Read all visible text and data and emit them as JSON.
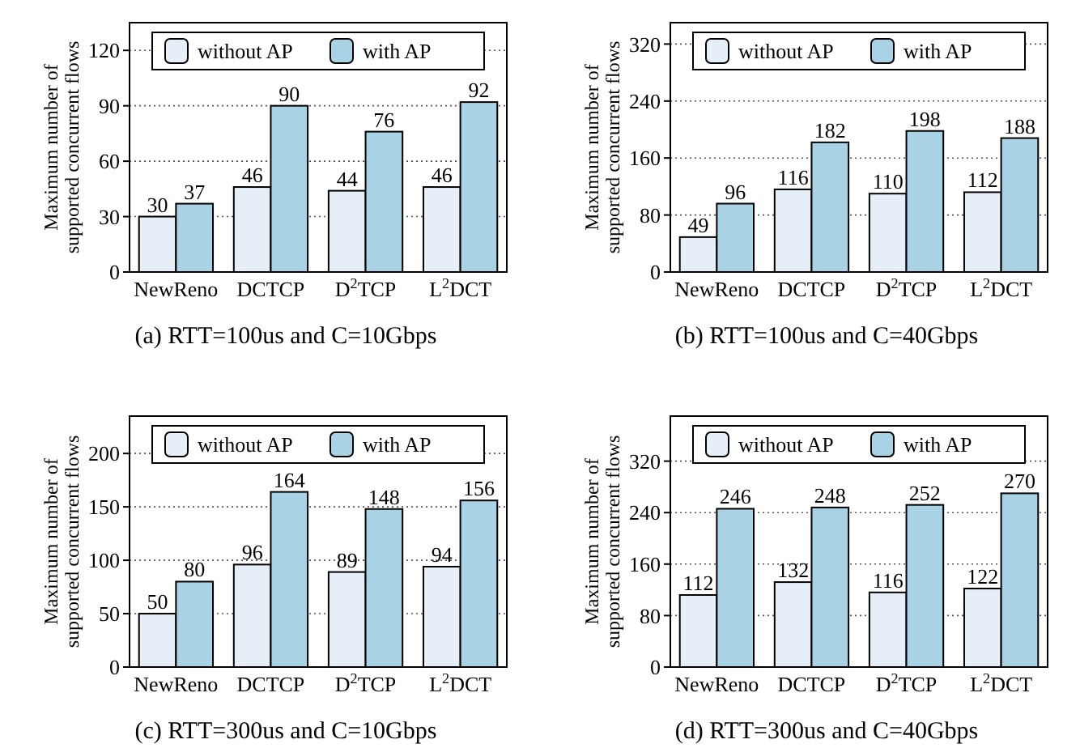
{
  "chart_data": [
    {
      "type": "bar",
      "title": "(a) RTT=100us and C=10Gbps",
      "ylabel": "Maximum number of\nsupported concurrent flows",
      "categories": [
        "NewReno",
        "DCTCP",
        "D$^{2}$TCP",
        "L$^{2}$DCT"
      ],
      "series": [
        {
          "name": "without AP",
          "color": "#e6eef8",
          "values": [
            30,
            46,
            44,
            46
          ]
        },
        {
          "name": "with AP",
          "color": "#a9d2e5",
          "values": [
            37,
            90,
            76,
            92
          ]
        }
      ],
      "ylim": [
        0,
        135
      ],
      "yticks": [
        0,
        30,
        60,
        90,
        120
      ],
      "grid": "y",
      "legend": "top",
      "data_labels": true
    },
    {
      "type": "bar",
      "title": "(b) RTT=100us and C=40Gbps",
      "ylabel": "Maximum number of\nsupported concurrent flows",
      "categories": [
        "NewReno",
        "DCTCP",
        "D$^{2}$TCP",
        "L$^{2}$DCT"
      ],
      "series": [
        {
          "name": "without AP",
          "color": "#e6eef8",
          "values": [
            49,
            116,
            110,
            112
          ]
        },
        {
          "name": "with AP",
          "color": "#a9d2e5",
          "values": [
            96,
            182,
            198,
            188
          ]
        }
      ],
      "ylim": [
        0,
        350
      ],
      "yticks": [
        0,
        80,
        160,
        240,
        320
      ],
      "grid": "y",
      "legend": "top",
      "data_labels": true
    },
    {
      "type": "bar",
      "title": "(c) RTT=300us and C=10Gbps",
      "ylabel": "Maximum number of\nsupported concurrent flows",
      "categories": [
        "NewReno",
        "DCTCP",
        "D$^{2}$TCP",
        "L$^{2}$DCT"
      ],
      "series": [
        {
          "name": "without AP",
          "color": "#e6eef8",
          "values": [
            50,
            96,
            89,
            94
          ]
        },
        {
          "name": "with AP",
          "color": "#a9d2e5",
          "values": [
            80,
            164,
            148,
            156
          ]
        }
      ],
      "ylim": [
        0,
        235
      ],
      "yticks": [
        0,
        50,
        100,
        150,
        200
      ],
      "grid": "y",
      "legend": "top",
      "data_labels": true
    },
    {
      "type": "bar",
      "title": "(d) RTT=300us and C=40Gbps",
      "ylabel": "Maximum number of\nsupported concurrent flows",
      "categories": [
        "NewReno",
        "DCTCP",
        "D$^{2}$TCP",
        "L$^{2}$DCT"
      ],
      "series": [
        {
          "name": "without AP",
          "color": "#e6eef8",
          "values": [
            112,
            132,
            116,
            122
          ]
        },
        {
          "name": "with AP",
          "color": "#a9d2e5",
          "values": [
            246,
            248,
            252,
            270
          ]
        }
      ],
      "ylim": [
        0,
        390
      ],
      "yticks": [
        0,
        80,
        160,
        240,
        320
      ],
      "grid": "y",
      "legend": "top",
      "data_labels": true
    }
  ]
}
